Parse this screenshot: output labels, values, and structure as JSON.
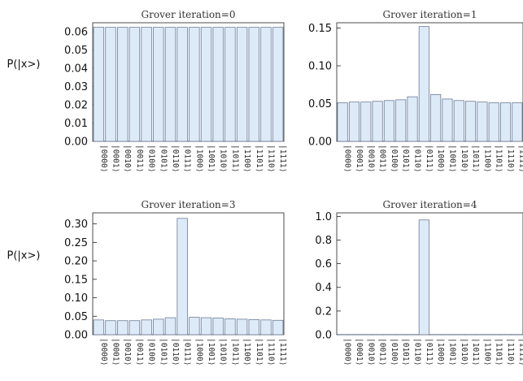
{
  "figure": {
    "y_axis_label": "P(|x>)"
  },
  "chart_data": [
    {
      "type": "bar",
      "title": "Grover iteration=0",
      "ylabel": "P(|x>)",
      "xlabel": "",
      "categories": [
        "|0000⟩",
        "|0001⟩",
        "|0010⟩",
        "|0011⟩",
        "|0100⟩",
        "|0101⟩",
        "|0110⟩",
        "|0111⟩",
        "|1000⟩",
        "|1001⟩",
        "|1010⟩",
        "|1011⟩",
        "|1100⟩",
        "|1101⟩",
        "|1110⟩",
        "|1111⟩"
      ],
      "values": [
        0.0625,
        0.0625,
        0.0625,
        0.0625,
        0.0625,
        0.0625,
        0.0625,
        0.0625,
        0.0625,
        0.0625,
        0.0625,
        0.0625,
        0.0625,
        0.0625,
        0.0625,
        0.0625
      ],
      "ylim": [
        0,
        0.065
      ],
      "yticks": [
        "0.00",
        "0.01",
        "0.02",
        "0.03",
        "0.04",
        "0.05",
        "0.06"
      ],
      "grid": false
    },
    {
      "type": "bar",
      "title": "Grover iteration=1",
      "ylabel": "",
      "xlabel": "",
      "categories": [
        "|0000⟩",
        "|0001⟩",
        "|0010⟩",
        "|0011⟩",
        "|0100⟩",
        "|0101⟩",
        "|0110⟩",
        "|0111⟩",
        "|1000⟩",
        "|1001⟩",
        "|1010⟩",
        "|1011⟩",
        "|1100⟩",
        "|1101⟩",
        "|1110⟩",
        "|1111⟩"
      ],
      "values": [
        0.051,
        0.052,
        0.052,
        0.053,
        0.054,
        0.055,
        0.059,
        0.152,
        0.062,
        0.056,
        0.054,
        0.053,
        0.052,
        0.051,
        0.051,
        0.051
      ],
      "ylim": [
        0,
        0.157
      ],
      "yticks": [
        "0.00",
        "0.05",
        "0.10",
        "0.15"
      ],
      "grid": false
    },
    {
      "type": "bar",
      "title": "Grover iteration=3",
      "ylabel": "P(|x>)",
      "xlabel": "",
      "categories": [
        "|0000⟩",
        "|0001⟩",
        "|0010⟩",
        "|0011⟩",
        "|0100⟩",
        "|0101⟩",
        "|0110⟩",
        "|0111⟩",
        "|1000⟩",
        "|1001⟩",
        "|1010⟩",
        "|1011⟩",
        "|1100⟩",
        "|1101⟩",
        "|1110⟩",
        "|1111⟩"
      ],
      "values": [
        0.04,
        0.038,
        0.038,
        0.038,
        0.04,
        0.042,
        0.046,
        0.315,
        0.047,
        0.046,
        0.045,
        0.043,
        0.042,
        0.041,
        0.04,
        0.039
      ],
      "ylim": [
        0,
        0.33
      ],
      "yticks": [
        "0.00",
        "0.05",
        "0.10",
        "0.15",
        "0.20",
        "0.25",
        "0.30"
      ],
      "grid": false
    },
    {
      "type": "bar",
      "title": "Grover iteration=4",
      "ylabel": "",
      "xlabel": "",
      "categories": [
        "|0000⟩",
        "|0001⟩",
        "|0010⟩",
        "|0011⟩",
        "|0100⟩",
        "|0101⟩",
        "|0110⟩",
        "|0111⟩",
        "|1000⟩",
        "|1001⟩",
        "|1010⟩",
        "|1011⟩",
        "|1100⟩",
        "|1101⟩",
        "|1110⟩",
        "|1111⟩"
      ],
      "values": [
        0.002,
        0.002,
        0.002,
        0.002,
        0.002,
        0.002,
        0.002,
        0.97,
        0.002,
        0.002,
        0.002,
        0.002,
        0.002,
        0.002,
        0.002,
        0.002
      ],
      "ylim": [
        0,
        1.03
      ],
      "yticks": [
        "0.0",
        "0.2",
        "0.4",
        "0.6",
        "0.8",
        "1.0"
      ],
      "grid": false
    }
  ]
}
